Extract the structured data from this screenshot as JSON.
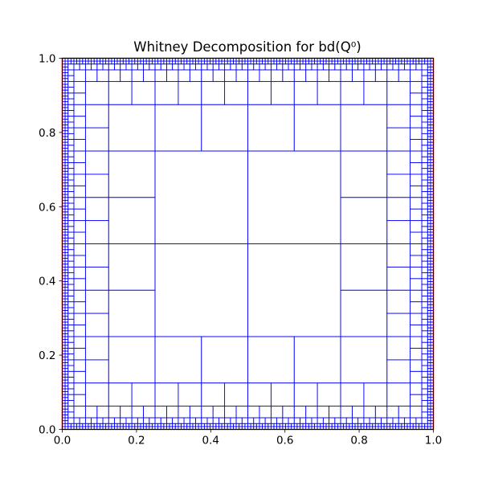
{
  "chart_data": {
    "type": "heatmap",
    "title": "Whitney Decomposition for bd(Q⁰)",
    "xlabel": "",
    "ylabel": "",
    "xlim": [
      0,
      1
    ],
    "ylim": [
      0,
      1
    ],
    "x_ticks": [
      0.0,
      0.2,
      0.4,
      0.6,
      0.8,
      1.0
    ],
    "x_tick_labels": [
      "0.0",
      "0.2",
      "0.4",
      "0.6",
      "0.8",
      "1.0"
    ],
    "y_ticks": [
      0.0,
      0.2,
      0.4,
      0.6,
      0.8,
      1.0
    ],
    "y_tick_labels": [
      "0.0",
      "0.2",
      "0.4",
      "0.6",
      "0.8",
      "1.0"
    ],
    "grid": false,
    "legend": "none",
    "decomposition": {
      "base_cube": [
        [
          0,
          1
        ],
        [
          0,
          1
        ]
      ],
      "smallest_cube_side": 0.0078125,
      "cube_side_rule": "1/4 of the largest dyadic cube whose 3x enlargement stays inside Q⁰",
      "cube_edge_color": "#0000ff",
      "boundary_color": "#ff0000"
    }
  }
}
